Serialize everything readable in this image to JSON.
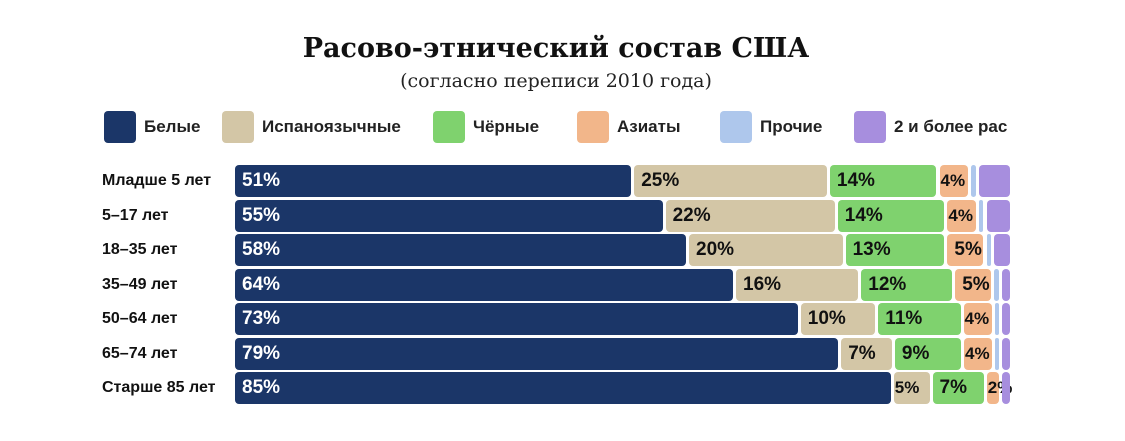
{
  "chart_data": {
    "type": "bar",
    "orientation": "horizontal",
    "stacked": true,
    "title": "Расово-этнический состав США",
    "subtitle": "(согласно переписи 2010 года)",
    "categories": [
      "Младше 5 лет",
      "5–17 лет",
      "18–35 лет",
      "35–49 лет",
      "50–64 лет",
      "65–74 лет",
      "Старше 85 лет"
    ],
    "series": [
      {
        "name": "Белые",
        "color": "#1b3668",
        "text_color": "#ffffff",
        "values": [
          51,
          55,
          58,
          64,
          73,
          79,
          85
        ]
      },
      {
        "name": "Испаноязычные",
        "color": "#d3c6a6",
        "text_color": "#111111",
        "values": [
          25,
          22,
          20,
          16,
          10,
          7,
          5
        ]
      },
      {
        "name": "Чёрные",
        "color": "#7fd26e",
        "text_color": "#111111",
        "values": [
          14,
          14,
          13,
          12,
          11,
          9,
          7
        ]
      },
      {
        "name": "Азиаты",
        "color": "#f2b68a",
        "text_color": "#111111",
        "values": [
          4,
          4,
          5,
          5,
          4,
          4,
          2
        ]
      },
      {
        "name": "Прочие",
        "color": "#aec7ec",
        "text_color": "#111111",
        "values": [
          1,
          1,
          1,
          1,
          1,
          1,
          0
        ]
      },
      {
        "name": "2 и более рас",
        "color": "#a78ede",
        "text_color": "#111111",
        "values": [
          4,
          3,
          2,
          1,
          1,
          1,
          1
        ]
      }
    ],
    "data_labels": [
      [
        "51%",
        "25%",
        "14%",
        "4%",
        "",
        ""
      ],
      [
        "55%",
        "22%",
        "14%",
        "4%",
        "",
        ""
      ],
      [
        "58%",
        "20%",
        "13%",
        "5%",
        "",
        ""
      ],
      [
        "64%",
        "16%",
        "12%",
        "5%",
        "",
        ""
      ],
      [
        "73%",
        "10%",
        "11%",
        "4%",
        "",
        ""
      ],
      [
        "79%",
        "7%",
        "9%",
        "4%",
        "",
        ""
      ],
      [
        "85%",
        "5%",
        "7%",
        "2%",
        "",
        ""
      ]
    ],
    "xlim": [
      0,
      100
    ],
    "legend_position": "top",
    "grid": false
  }
}
